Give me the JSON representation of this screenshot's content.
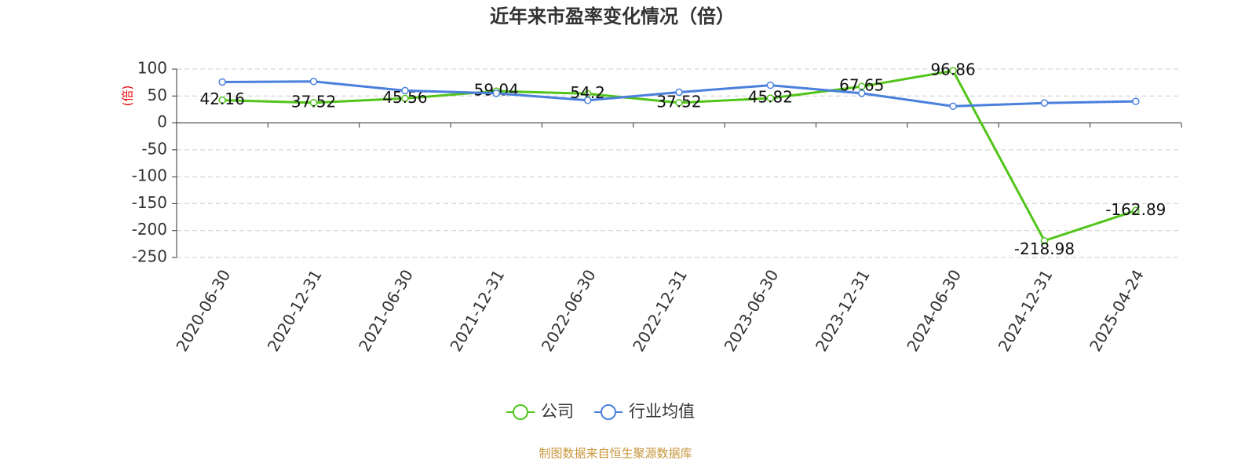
{
  "chart_data": {
    "type": "line",
    "title": "近年来市盈率变化情况（倍）",
    "y_label": "(倍)",
    "source": "制图数据来自恒生聚源数据库",
    "categories": [
      "2020-06-30",
      "2020-12-31",
      "2021-06-30",
      "2021-12-31",
      "2022-06-30",
      "2022-12-31",
      "2023-06-30",
      "2023-12-31",
      "2024-06-30",
      "2024-12-31",
      "2025-04-24"
    ],
    "series": [
      {
        "name": "公司",
        "color": "#52c41a",
        "data_labels": true,
        "values": [
          42.16,
          37.52,
          45.56,
          59.04,
          54.2,
          37.52,
          45.82,
          67.65,
          96.86,
          -218.98,
          -162.89
        ]
      },
      {
        "name": "行业均值",
        "color": "#4a7fdc",
        "data_labels": false,
        "values": [
          76,
          77,
          60,
          55,
          42,
          57,
          70,
          55,
          31,
          37,
          40
        ]
      }
    ],
    "ylim": [
      -250,
      100
    ],
    "yticks": [
      -250,
      -200,
      -150,
      -100,
      -50,
      0,
      50,
      100
    ],
    "grid": true
  }
}
